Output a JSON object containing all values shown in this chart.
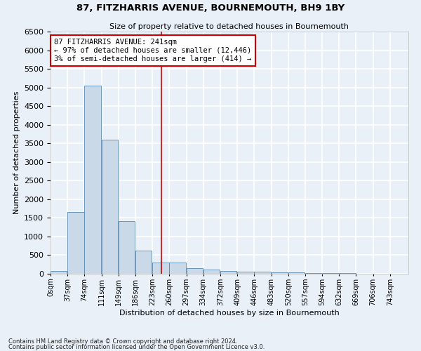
{
  "title": "87, FITZHARRIS AVENUE, BOURNEMOUTH, BH9 1BY",
  "subtitle": "Size of property relative to detached houses in Bournemouth",
  "xlabel": "Distribution of detached houses by size in Bournemouth",
  "ylabel": "Number of detached properties",
  "footnote1": "Contains HM Land Registry data © Crown copyright and database right 2024.",
  "footnote2": "Contains public sector information licensed under the Open Government Licence v3.0.",
  "bin_labels": [
    "0sqm",
    "37sqm",
    "74sqm",
    "111sqm",
    "149sqm",
    "186sqm",
    "223sqm",
    "260sqm",
    "297sqm",
    "334sqm",
    "372sqm",
    "409sqm",
    "446sqm",
    "483sqm",
    "520sqm",
    "557sqm",
    "594sqm",
    "632sqm",
    "669sqm",
    "706sqm",
    "743sqm"
  ],
  "bar_values": [
    75,
    1650,
    5050,
    3600,
    1420,
    620,
    300,
    300,
    150,
    110,
    80,
    60,
    55,
    40,
    30,
    20,
    15,
    10,
    8,
    5,
    3
  ],
  "bar_color": "#c9d9e8",
  "bar_edge_color": "#5a8ab0",
  "annotation_text": "87 FITZHARRIS AVENUE: 241sqm\n← 97% of detached houses are smaller (12,446)\n3% of semi-detached houses are larger (414) →",
  "annotation_box_color": "#ffffff",
  "annotation_box_edge_color": "#cc0000",
  "vline_x": 241,
  "vline_color": "#cc0000",
  "ylim": [
    0,
    6500
  ],
  "xlim": [
    0,
    780
  ],
  "background_color": "#eaf0f8",
  "grid_color": "#ffffff",
  "bin_width": 37
}
